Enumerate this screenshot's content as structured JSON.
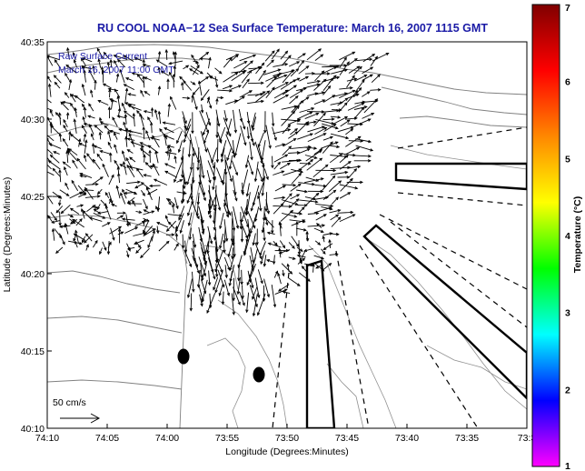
{
  "title": "RU COOL  NOAA−12  Sea Surface Temperature:  March 16, 2007 1115 GMT",
  "annotation": {
    "line1": "Raw Surface Current",
    "line2": "March 16, 2007 11:00 GMT"
  },
  "x_axis": {
    "label": "Longitude (Degrees:Minutes)",
    "ticks": [
      "74:10",
      "74:05",
      "74:00",
      "73:55",
      "73:50",
      "73:45",
      "73:40",
      "73:35",
      "73:3"
    ]
  },
  "y_axis": {
    "label": "Latitude (Degrees:Minutes)",
    "ticks": [
      "40:35",
      "40:30",
      "40:25",
      "40:20",
      "40:15",
      "40:10"
    ]
  },
  "scale_arrow_label": "50 cm/s",
  "colorbar": {
    "label": "Temperature (°C)",
    "ticks": [
      "7",
      "6",
      "5",
      "4",
      "3",
      "2",
      "1"
    ],
    "range": [
      1,
      7
    ],
    "colors": [
      "#ff00ff",
      "#0000ff",
      "#00ffff",
      "#00ff00",
      "#ffff00",
      "#ff8800",
      "#ff0000",
      "#800000"
    ]
  },
  "colors": {
    "title": "#1a1aa6",
    "coastline": "#808080",
    "vectors": "#000000"
  }
}
